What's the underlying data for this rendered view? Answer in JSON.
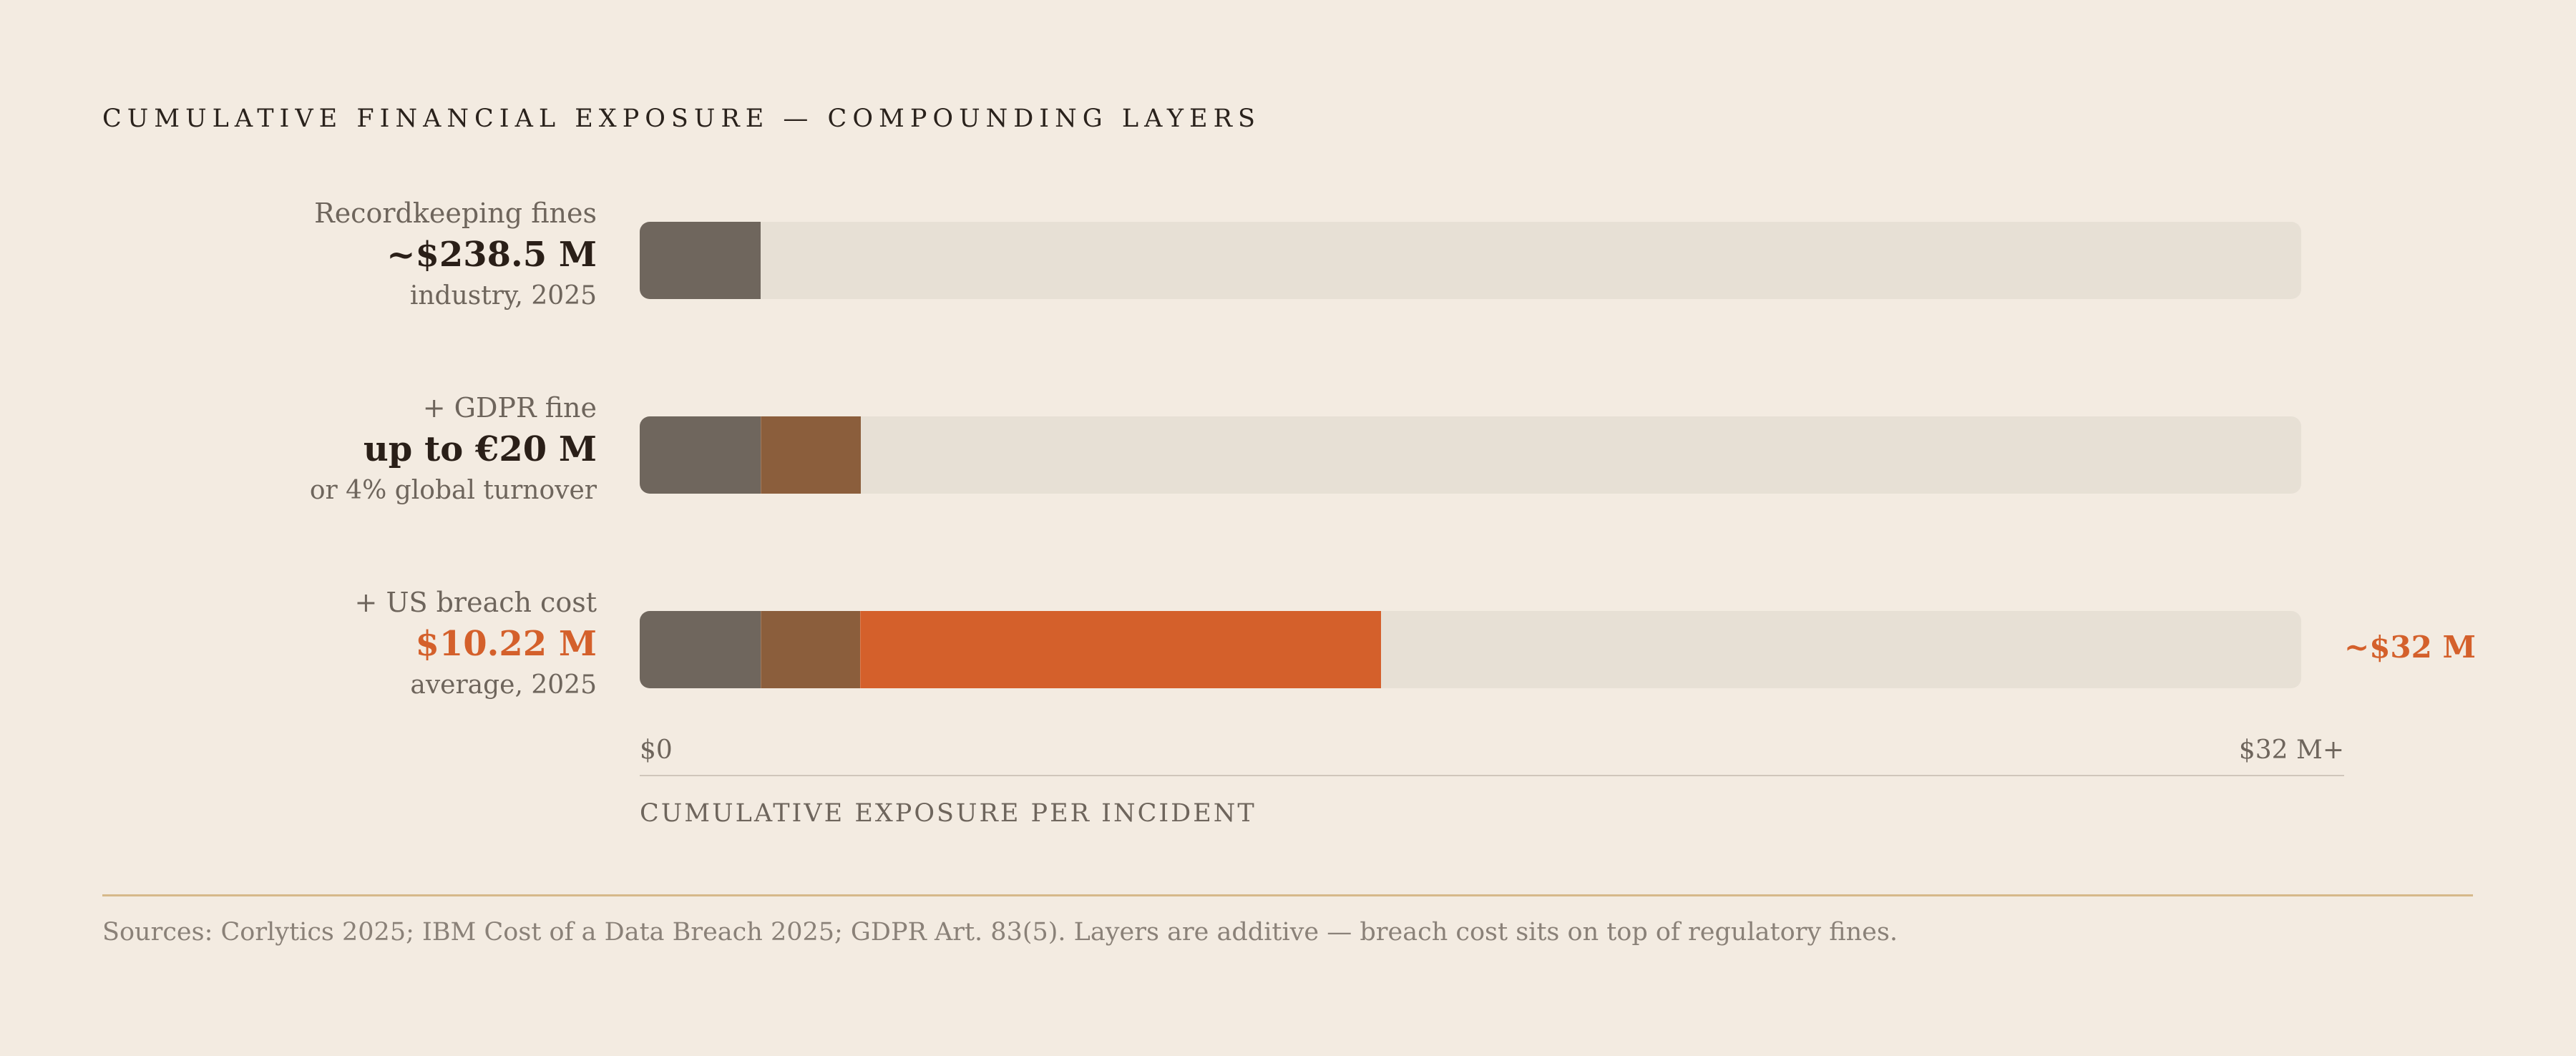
{
  "title": "CUMULATIVE FINANCIAL EXPOSURE — COMPOUNDING LAYERS",
  "colors": {
    "background": "#f3ebe1",
    "track": "#e7e0d5",
    "recordkeeping": "#6f665d",
    "gdpr": "#8b5e3c",
    "us_breach": "#d4602b",
    "accent": "#d4602b",
    "divider": "#d6b98a"
  },
  "rows": [
    {
      "label": "Recordkeeping fines",
      "value": "~$238.5 M",
      "sub": "industry, 2025"
    },
    {
      "label": "+ GDPR fine",
      "value": "up to €20 M",
      "sub": "or 4% global turnover"
    },
    {
      "label": "+ US breach cost",
      "value": "$10.22 M",
      "sub": "average, 2025"
    }
  ],
  "end_label": "~$32 M",
  "axis": {
    "min_label": "$0",
    "max_label": "$32 M+",
    "title": "CUMULATIVE EXPOSURE PER INCIDENT"
  },
  "sources": "Sources: Corlytics 2025; IBM Cost of a Data Breach 2025; GDPR Art. 83(5). Layers are additive — breach cost sits on top of regulatory fines.",
  "chart_data": {
    "type": "bar",
    "orientation": "horizontal",
    "stacked": true,
    "categories": [
      "Recordkeeping fines",
      "+ GDPR fine",
      "+ US breach cost"
    ],
    "xlim": [
      0,
      32
    ],
    "grid": false,
    "series": [
      {
        "values": [
          2.33,
          2.33,
          2.33
        ]
      },
      {
        "values": [
          0,
          1.92,
          1.92
        ]
      },
      {
        "values": [
          0,
          0,
          10.01
        ]
      }
    ]
  }
}
